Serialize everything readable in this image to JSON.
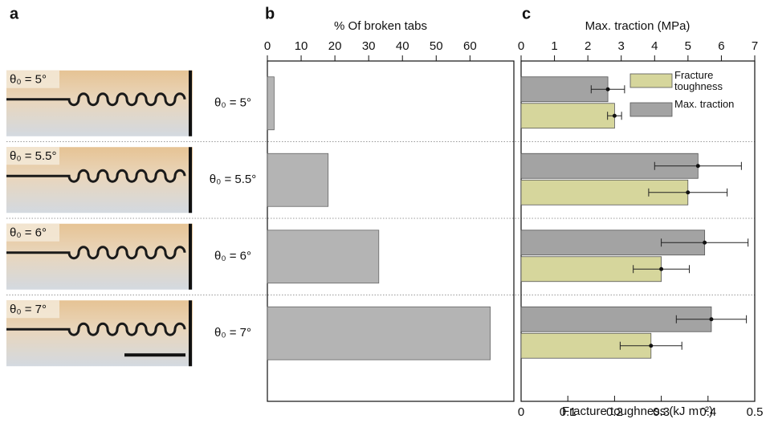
{
  "panels": [
    "a",
    "b",
    "c"
  ],
  "chart_data": [
    {
      "type": "bar",
      "orientation": "horizontal",
      "x_label": "% Of broken tabs",
      "categories": [
        "θ₀ = 5°",
        "θ₀ = 5.5°",
        "θ₀ = 6°",
        "θ₀ = 7°"
      ],
      "values": [
        2,
        18,
        33,
        66
      ],
      "color": "#b4b4b4",
      "xlim": [
        0,
        73
      ],
      "xticks": [
        0,
        10,
        20,
        30,
        40,
        50,
        60
      ],
      "grid": false
    },
    {
      "type": "bar",
      "orientation": "horizontal",
      "x_label": "Fracture toughness (kJ m⁻²)",
      "x2_label": "Max. traction (MPa)",
      "series": [
        {
          "name": "Fracture toughness",
          "color": "#d6d69c",
          "values": [
            0.2,
            0.357,
            0.3,
            0.278
          ],
          "errors": [
            0.015,
            0.084,
            0.06,
            0.066
          ]
        },
        {
          "name": "Max. traction",
          "color": "#a3a3a3",
          "axis": "x2",
          "values": [
            2.6,
            5.3,
            5.5,
            5.7
          ],
          "errors": [
            0.5,
            1.3,
            1.3,
            1.05
          ]
        }
      ],
      "xlim": [
        0,
        0.5
      ],
      "xticks": [
        0,
        0.1,
        0.2,
        0.3,
        0.4,
        0.5
      ],
      "x2lim": [
        0,
        7
      ],
      "x2ticks": [
        0,
        1,
        2,
        3,
        4,
        5,
        6,
        7
      ],
      "legend": "upper right",
      "grid": false
    }
  ]
}
